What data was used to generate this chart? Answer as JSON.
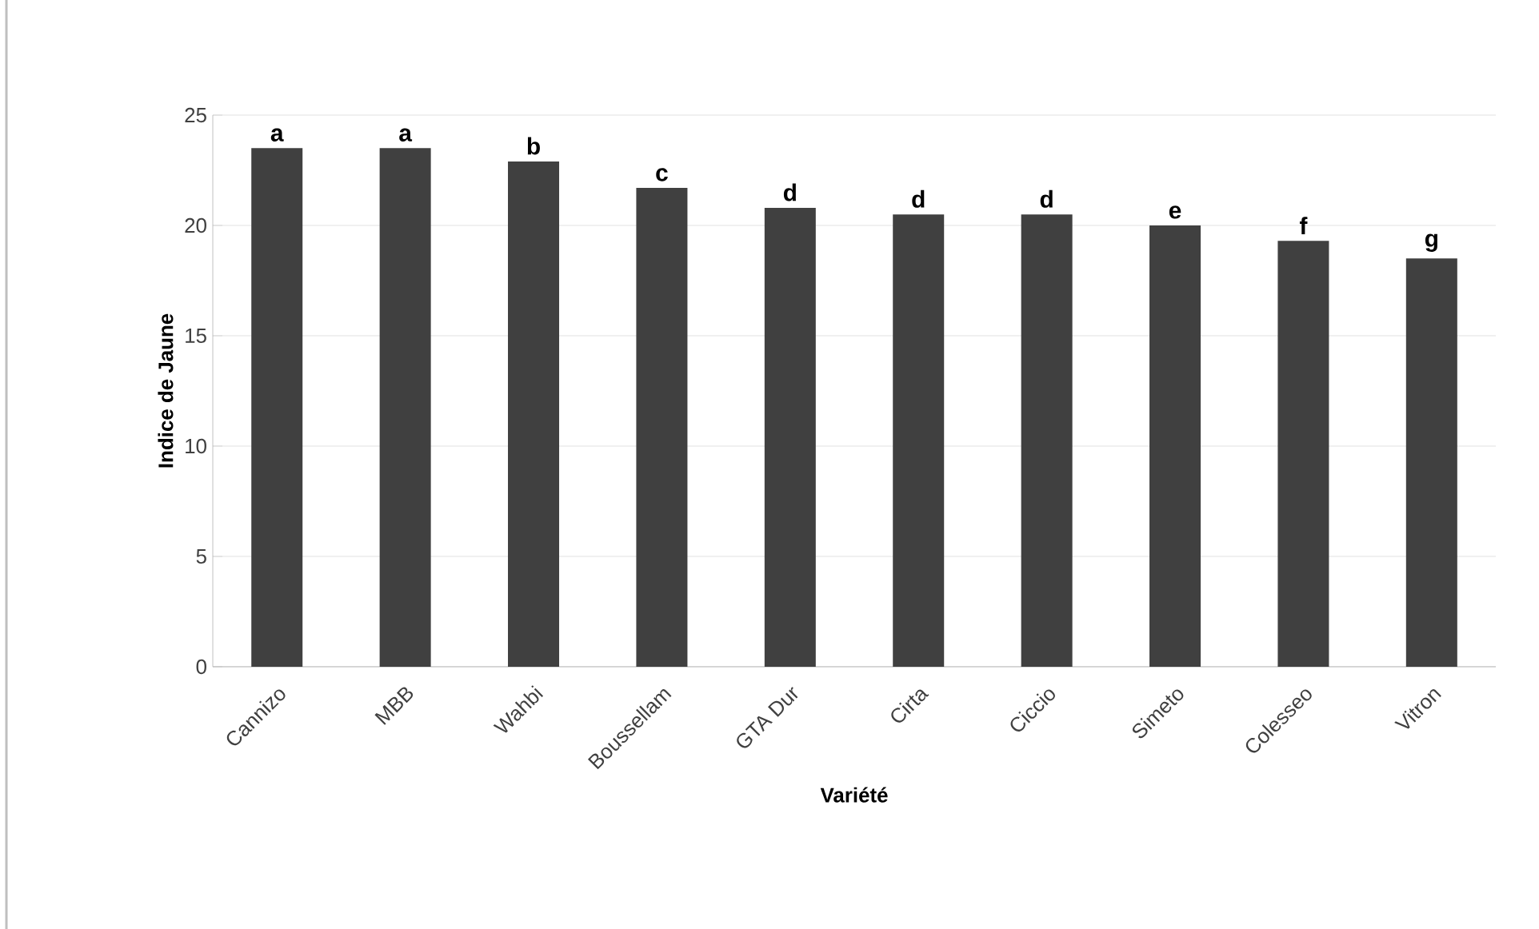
{
  "chart_data": {
    "type": "bar",
    "xlabel": "Variété",
    "ylabel": "Indice de Jaune",
    "categories": [
      "Cannizo",
      "MBB",
      "Wahbi",
      "Boussellam",
      "GTA Dur",
      "Cirta",
      "Ciccio",
      "Simeto",
      "Colesseo",
      "Vitron"
    ],
    "values": [
      23.5,
      23.5,
      22.9,
      21.7,
      20.8,
      20.5,
      20.5,
      20.0,
      19.3,
      18.5
    ],
    "color": "#404040",
    "ylim": [
      0,
      25
    ],
    "yticks": [
      0,
      5,
      10,
      15,
      20,
      25
    ],
    "grid": "y",
    "annotations": [
      {
        "text": "a",
        "x": "Cannizo",
        "y": 23.5
      },
      {
        "text": "a",
        "x": "MBB",
        "y": 23.5
      },
      {
        "text": "b",
        "x": "Wahbi",
        "y": 22.9
      },
      {
        "text": "c",
        "x": "Boussellam",
        "y": 21.7
      },
      {
        "text": "d",
        "x": "GTA Dur",
        "y": 20.8
      },
      {
        "text": "d",
        "x": "Cirta",
        "y": 20.5
      },
      {
        "text": "d",
        "x": "Ciccio",
        "y": 20.5
      },
      {
        "text": "e",
        "x": "Simeto",
        "y": 20.0
      },
      {
        "text": "f",
        "x": "Colesseo",
        "y": 19.3
      },
      {
        "text": "g",
        "x": "Vitron",
        "y": 18.5
      }
    ]
  }
}
